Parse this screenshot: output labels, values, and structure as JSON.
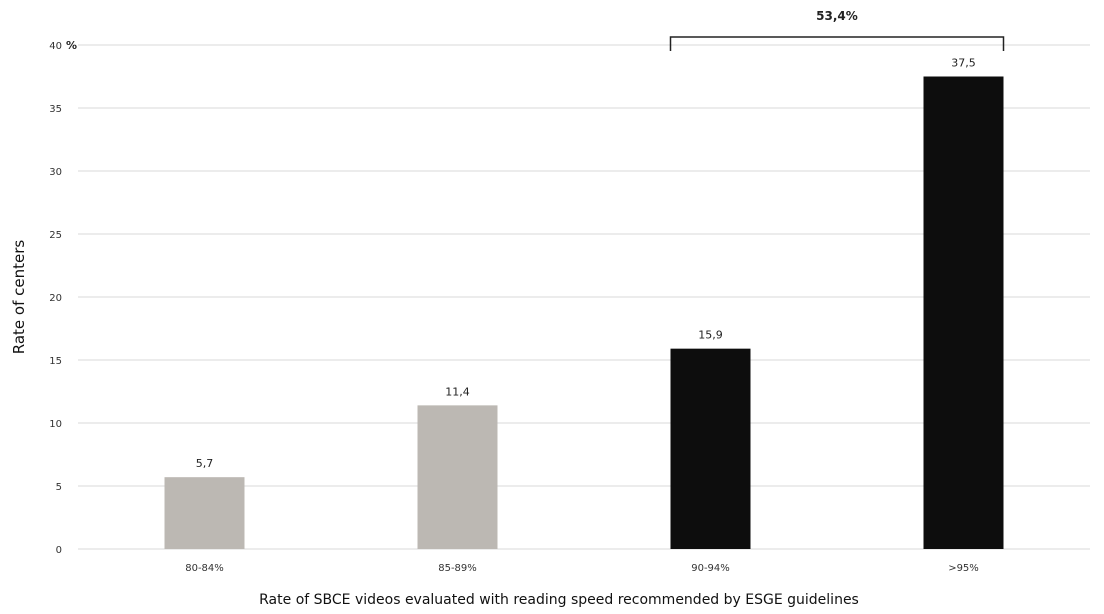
{
  "chart_data": {
    "type": "bar",
    "categories": [
      "80-84%",
      "85-89%",
      "90-94%",
      ">95%"
    ],
    "values": [
      5.7,
      11.4,
      15.9,
      37.5
    ],
    "value_labels": [
      "5,7",
      "11,4",
      "15,9",
      "37,5"
    ],
    "bar_colors": [
      "#bcb8b3",
      "#bcb8b3",
      "#0d0d0d",
      "#0d0d0d"
    ],
    "title": "",
    "xlabel": "Rate of SBCE videos evaluated with reading speed recommended by ESGE guidelines",
    "ylabel": "Rate of centers",
    "y_unit": "%",
    "ylim": [
      0,
      40
    ],
    "y_ticks": [
      0,
      5,
      10,
      15,
      20,
      25,
      30,
      35,
      40
    ],
    "grid": true,
    "legend": "none",
    "annotation": {
      "text": "53,4%",
      "spans_categories": [
        "90-94%",
        ">95%"
      ]
    }
  }
}
